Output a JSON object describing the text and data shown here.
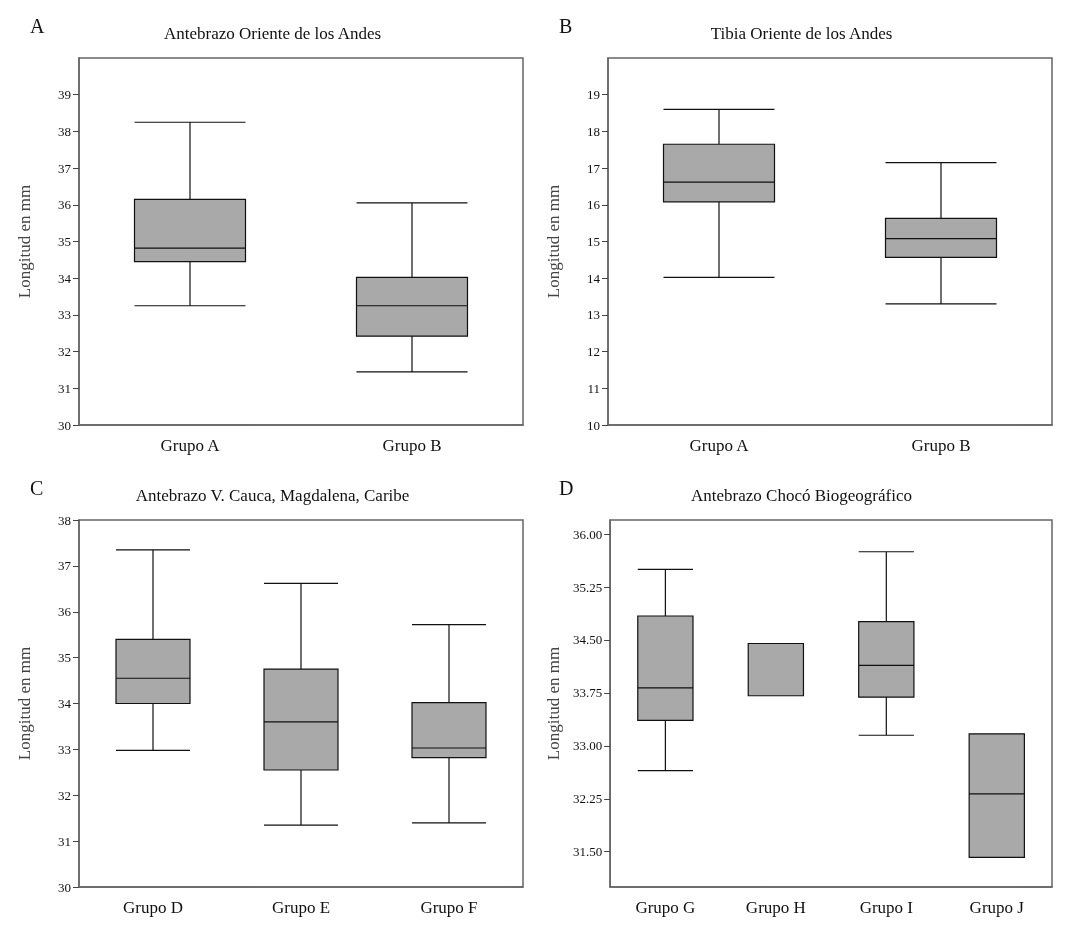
{
  "chart_data": [
    {
      "type": "box",
      "title": "Antebrazo Oriente de los Andes",
      "annotations": [
        "A"
      ],
      "ylabel": "Longitud en mm",
      "categories": [
        "Grupo A",
        "Grupo B"
      ],
      "ylim": [
        30,
        40
      ],
      "yticks": [
        30,
        31,
        32,
        33,
        34,
        35,
        36,
        37,
        38,
        39
      ],
      "grid": false,
      "series": [
        {
          "color": "#a9a9a9",
          "boxes": [
            {
              "low": 33.25,
              "q1": 34.45,
              "median": 34.82,
              "q3": 36.15,
              "high": 38.25
            },
            {
              "low": 31.45,
              "q1": 32.42,
              "median": 33.25,
              "q3": 34.02,
              "high": 36.05
            }
          ]
        }
      ]
    },
    {
      "type": "box",
      "title": "Tibia Oriente de los Andes",
      "annotations": [
        "B"
      ],
      "ylabel": "Longitud en mm",
      "categories": [
        "Grupo A",
        "Grupo B"
      ],
      "ylim": [
        10,
        20
      ],
      "yticks": [
        10,
        11,
        12,
        13,
        14,
        15,
        16,
        17,
        18,
        19
      ],
      "grid": false,
      "series": [
        {
          "color": "#a9a9a9",
          "boxes": [
            {
              "low": 14.02,
              "q1": 16.08,
              "median": 16.62,
              "q3": 17.65,
              "high": 18.6
            },
            {
              "low": 13.3,
              "q1": 14.57,
              "median": 15.08,
              "q3": 15.63,
              "high": 17.15
            }
          ]
        }
      ]
    },
    {
      "type": "box",
      "title": "Antebrazo V. Cauca, Magdalena, Caribe",
      "annotations": [
        "C"
      ],
      "ylabel": "Longitud en mm",
      "categories": [
        "Grupo D",
        "Grupo E",
        "Grupo F"
      ],
      "ylim": [
        30,
        38
      ],
      "yticks": [
        30,
        31,
        32,
        33,
        34,
        35,
        36,
        37,
        38
      ],
      "grid": false,
      "series": [
        {
          "color": "#a9a9a9",
          "boxes": [
            {
              "low": 32.98,
              "q1": 34.0,
              "median": 34.55,
              "q3": 35.4,
              "high": 37.35
            },
            {
              "low": 31.35,
              "q1": 32.55,
              "median": 33.6,
              "q3": 34.75,
              "high": 36.62
            },
            {
              "low": 31.4,
              "q1": 32.82,
              "median": 33.03,
              "q3": 34.02,
              "high": 35.72
            }
          ]
        }
      ]
    },
    {
      "type": "box",
      "title": "Antebrazo Chocó Biogeográfico",
      "annotations": [
        "D"
      ],
      "ylabel": "Longitud en mm",
      "categories": [
        "Grupo G",
        "Grupo H",
        "Grupo I",
        "Grupo J"
      ],
      "ylim": [
        31,
        36.2
      ],
      "yticks": [
        {
          "value": 31.5,
          "label": "31.50"
        },
        {
          "value": 32.25,
          "label": "32.25"
        },
        {
          "value": 33,
          "label": "33.00"
        },
        {
          "value": 33.75,
          "label": "33.75"
        },
        {
          "value": 34.5,
          "label": "34.50"
        },
        {
          "value": 35.25,
          "label": "35.25"
        },
        {
          "value": 36,
          "label": "36.00"
        }
      ],
      "grid": false,
      "series": [
        {
          "color": "#a9a9a9",
          "boxes": [
            {
              "low": 32.65,
              "q1": 33.36,
              "median": 33.82,
              "q3": 34.84,
              "high": 35.5
            },
            {
              "low": 33.71,
              "q1": 33.71,
              "median": 33.71,
              "q3": 34.45,
              "high": 34.45
            },
            {
              "low": 33.15,
              "q1": 33.69,
              "median": 34.14,
              "q3": 34.76,
              "high": 35.75
            },
            {
              "low": 31.42,
              "q1": 31.42,
              "median": 32.32,
              "q3": 33.17,
              "high": 33.17
            }
          ]
        }
      ]
    }
  ]
}
